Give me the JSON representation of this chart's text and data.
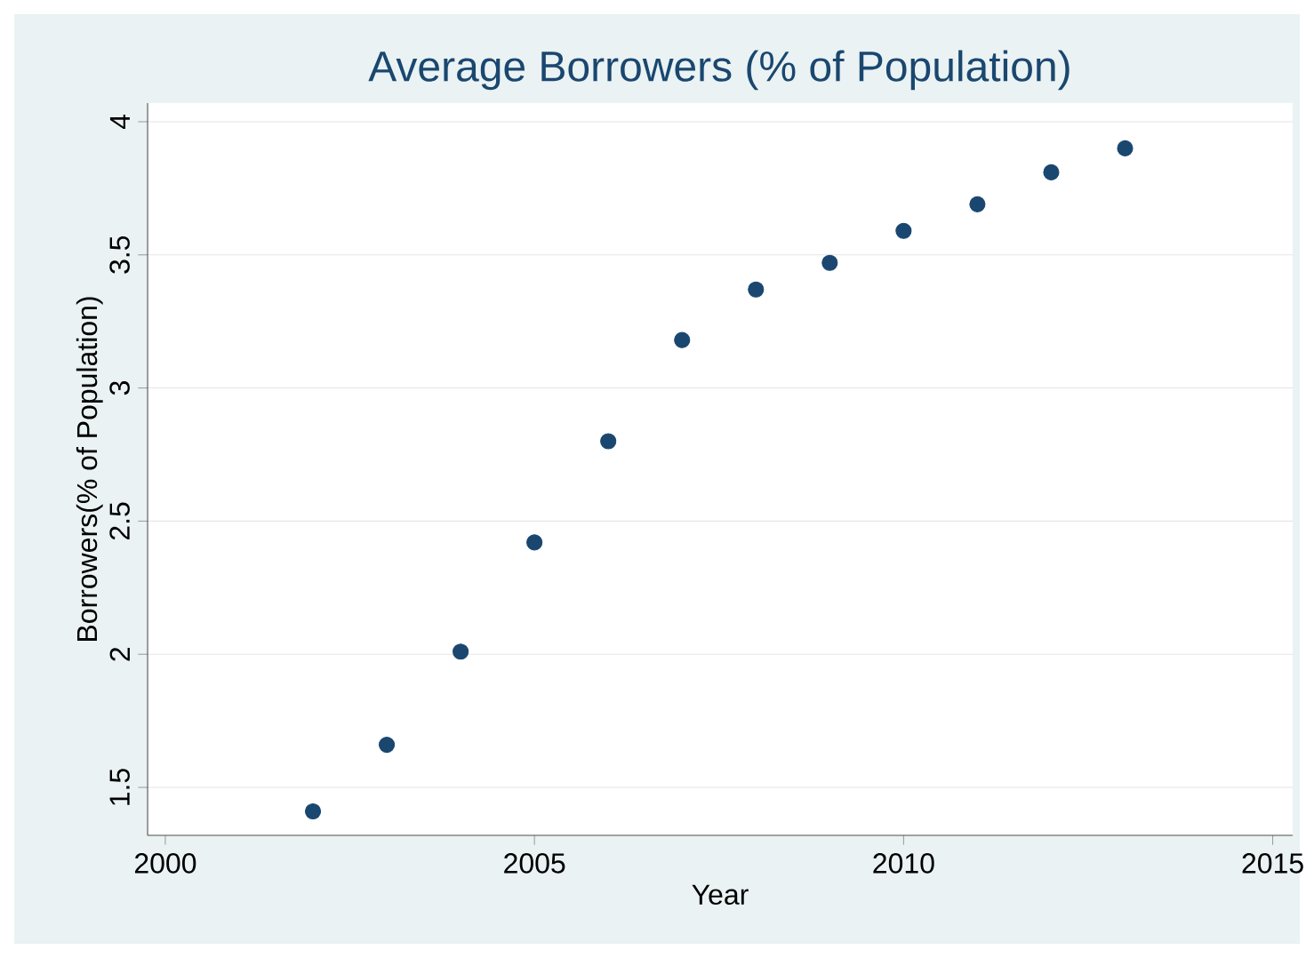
{
  "chart_data": {
    "type": "scatter",
    "title": "Average Borrowers (% of Population)",
    "xlabel": "Year",
    "ylabel": "Borrowers(% of Population)",
    "x": [
      2002,
      2003,
      2004,
      2005,
      2006,
      2007,
      2008,
      2009,
      2010,
      2011,
      2012,
      2013
    ],
    "values": [
      1.41,
      1.66,
      2.01,
      2.42,
      2.8,
      3.18,
      3.37,
      3.47,
      3.59,
      3.69,
      3.81,
      3.9
    ],
    "color": "#1a476f",
    "xlim": [
      1999.76,
      2015.27
    ],
    "ylim": [
      1.32,
      4.07
    ],
    "xticks": [
      2000,
      2005,
      2010,
      2015
    ],
    "yticks": [
      1.5,
      2,
      2.5,
      3,
      3.5,
      4
    ],
    "grid": "y",
    "marker": "circle"
  }
}
